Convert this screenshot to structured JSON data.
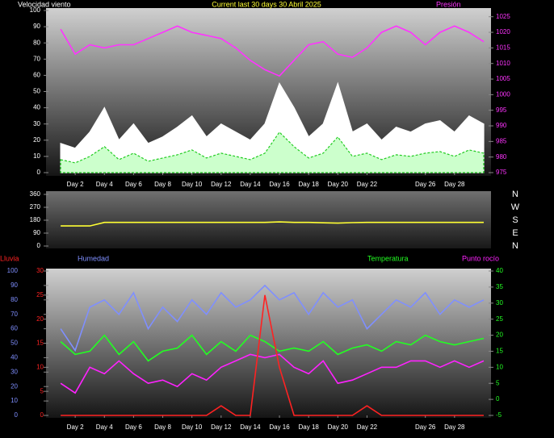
{
  "chart_data": [
    {
      "type": "line",
      "title": "Current last 30 days 30 Abril 2025",
      "y_label": "Velocidad viento",
      "x": [
        1,
        2,
        3,
        4,
        5,
        6,
        7,
        8,
        9,
        10,
        11,
        12,
        13,
        14,
        15,
        16,
        17,
        18,
        19,
        20,
        21,
        22,
        23,
        24,
        25,
        26,
        27,
        28,
        29,
        30
      ],
      "xlim": [
        0,
        30.5
      ],
      "xticks": [
        {
          "value": 2,
          "label": "Day 2"
        },
        {
          "value": 4,
          "label": "Day 4"
        },
        {
          "value": 6,
          "label": "Day 6"
        },
        {
          "value": 8,
          "label": "Day 8"
        },
        {
          "value": 10,
          "label": "Day 10"
        },
        {
          "value": 12,
          "label": "Day 12"
        },
        {
          "value": 14,
          "label": "Day 14"
        },
        {
          "value": 16,
          "label": "Day 16"
        },
        {
          "value": 18,
          "label": "Day 18"
        },
        {
          "value": 20,
          "label": "Day 20"
        },
        {
          "value": 22,
          "label": "Day 22"
        },
        {
          "value": 26,
          "label": "Day 26"
        },
        {
          "value": 28,
          "label": "Day 28"
        }
      ],
      "ylim": [
        0,
        100
      ],
      "yticks": [
        0,
        10,
        20,
        30,
        40,
        50,
        60,
        70,
        80,
        90,
        100
      ],
      "y2lim": [
        975,
        1027
      ],
      "y2ticks": [
        975,
        980,
        985,
        990,
        995,
        1000,
        1005,
        1010,
        1015,
        1020,
        1025
      ],
      "series": [
        {
          "style": "area",
          "color": "#ffffff",
          "values": [
            18,
            15,
            25,
            40,
            20,
            30,
            18,
            22,
            28,
            35,
            22,
            30,
            25,
            20,
            30,
            55,
            40,
            22,
            30,
            55,
            25,
            30,
            20,
            28,
            25,
            30,
            32,
            25,
            35,
            30
          ]
        },
        {
          "style": "area",
          "color": "#22cc22",
          "fill": "#ccffcc",
          "values": [
            8,
            6,
            10,
            16,
            8,
            12,
            7,
            9,
            11,
            14,
            9,
            12,
            10,
            8,
            12,
            25,
            16,
            9,
            12,
            22,
            10,
            12,
            8,
            11,
            10,
            12,
            13,
            10,
            14,
            12
          ]
        },
        {
          "name": "Presión",
          "color": "#ff33ff",
          "axis": "y2",
          "values": [
            1021,
            1013,
            1016,
            1015,
            1016,
            1016,
            1018,
            1020,
            1022,
            1020,
            1019,
            1018,
            1015,
            1011,
            1008,
            1006,
            1011,
            1016,
            1017,
            1013,
            1012,
            1015,
            1020,
            1022,
            1020,
            1016,
            1020,
            1022,
            1020,
            1017
          ]
        }
      ]
    },
    {
      "type": "line",
      "x": [
        1,
        2,
        3,
        4,
        5,
        6,
        7,
        8,
        9,
        10,
        11,
        12,
        13,
        14,
        15,
        16,
        17,
        18,
        19,
        20,
        21,
        22,
        23,
        24,
        25,
        26,
        27,
        28,
        29,
        30
      ],
      "xlim": [
        0,
        30.5
      ],
      "ylim": [
        0,
        360
      ],
      "yticks": [
        0,
        90,
        180,
        270,
        360
      ],
      "right_labels": [
        "N",
        "W",
        "S",
        "E",
        "N"
      ],
      "series": [
        {
          "color": "#ffff33",
          "values": [
            140,
            140,
            140,
            165,
            165,
            165,
            165,
            165,
            165,
            165,
            165,
            165,
            165,
            165,
            165,
            168,
            165,
            165,
            162,
            160,
            163,
            165,
            165,
            165,
            165,
            165,
            165,
            165,
            165,
            165
          ]
        }
      ]
    },
    {
      "type": "line",
      "x": [
        1,
        2,
        3,
        4,
        5,
        6,
        7,
        8,
        9,
        10,
        11,
        12,
        13,
        14,
        15,
        16,
        17,
        18,
        19,
        20,
        21,
        22,
        23,
        24,
        25,
        26,
        27,
        28,
        29,
        30
      ],
      "xlim": [
        0,
        30.5
      ],
      "xticks": [
        {
          "value": 2,
          "label": "Day 2"
        },
        {
          "value": 4,
          "label": "Day 4"
        },
        {
          "value": 6,
          "label": "Day 6"
        },
        {
          "value": 8,
          "label": "Day 8"
        },
        {
          "value": 10,
          "label": "Day 10"
        },
        {
          "value": 12,
          "label": "Day 12"
        },
        {
          "value": 14,
          "label": "Day 14"
        },
        {
          "value": 16,
          "label": "Day 16"
        },
        {
          "value": 18,
          "label": "Day 18"
        },
        {
          "value": 20,
          "label": "Day 20"
        },
        {
          "value": 22,
          "label": "Day 22"
        },
        {
          "value": 26,
          "label": "Day 26"
        },
        {
          "value": 28,
          "label": "Day 28"
        }
      ],
      "ylim": [
        0,
        100
      ],
      "yticks": [
        0,
        10,
        20,
        30,
        40,
        50,
        60,
        70,
        80,
        90,
        100
      ],
      "y2lim": [
        -5,
        40
      ],
      "y2ticks": [
        -5,
        0,
        5,
        10,
        15,
        20,
        25,
        30,
        35,
        40
      ],
      "y3lim": [
        0,
        30
      ],
      "y3ticks": [
        0,
        5,
        10,
        15,
        20,
        25,
        30
      ],
      "series": [
        {
          "name": "Humedad",
          "color": "#7f8fff",
          "values": [
            60,
            45,
            75,
            80,
            70,
            85,
            60,
            75,
            65,
            80,
            70,
            85,
            75,
            80,
            90,
            80,
            85,
            70,
            85,
            75,
            80,
            60,
            70,
            80,
            75,
            85,
            70,
            80,
            75,
            80
          ]
        },
        {
          "name": "Temperatura",
          "color": "#22ff22",
          "axis": "y2",
          "values": [
            18,
            14,
            15,
            20,
            14,
            18,
            12,
            15,
            16,
            20,
            14,
            18,
            15,
            20,
            18,
            15,
            16,
            15,
            18,
            14,
            16,
            17,
            15,
            18,
            17,
            20,
            18,
            17,
            18,
            19
          ]
        },
        {
          "name": "Punto rocío",
          "color": "#ff22ff",
          "axis": "y2",
          "values": [
            5,
            2,
            10,
            8,
            12,
            8,
            5,
            6,
            4,
            8,
            6,
            10,
            12,
            14,
            13,
            14,
            10,
            8,
            12,
            5,
            6,
            8,
            10,
            10,
            12,
            12,
            10,
            12,
            10,
            12
          ]
        },
        {
          "name": "Lluvia",
          "color": "#ff2222",
          "axis": "y3",
          "values": [
            0,
            0,
            0,
            0,
            0,
            0,
            0,
            0,
            0,
            0,
            0,
            2,
            0,
            0,
            25,
            10,
            0,
            0,
            0,
            0,
            0,
            2,
            0,
            0,
            0,
            0,
            0,
            0,
            0,
            0
          ]
        }
      ]
    }
  ]
}
